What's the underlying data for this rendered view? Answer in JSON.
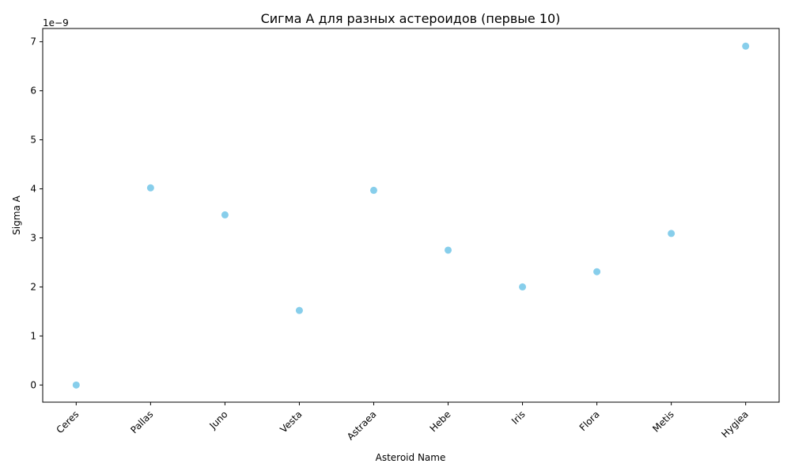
{
  "chart_data": {
    "type": "scatter",
    "title": "Сигма A для разных астероидов (первые 10)",
    "xlabel": "Asteroid Name",
    "ylabel": "Sigma A",
    "y_exponent_label": "1e−9",
    "categories": [
      "Ceres",
      "Pallas",
      "Juno",
      "Vesta",
      "Astraea",
      "Hebe",
      "Iris",
      "Flora",
      "Metis",
      "Hygiea"
    ],
    "values": [
      0.0,
      4.02,
      3.47,
      1.52,
      3.97,
      2.75,
      2.0,
      2.31,
      3.09,
      6.91
    ],
    "y_scale_factor": 1e-09,
    "ylim": [
      -0.35,
      7.27
    ],
    "yticks": [
      0,
      1,
      2,
      3,
      4,
      5,
      6,
      7
    ],
    "marker_color": "#87ceeb",
    "grid": false,
    "legend": "none"
  }
}
